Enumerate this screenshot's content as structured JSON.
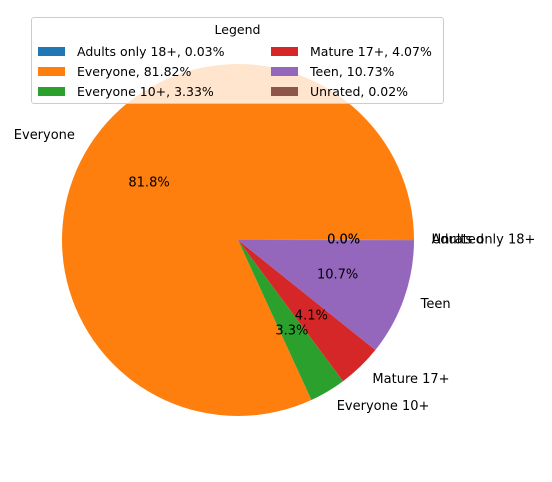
{
  "chart_data": {
    "type": "pie",
    "title": "",
    "categories": [
      "Adults only 18+",
      "Everyone",
      "Everyone 10+",
      "Mature 17+",
      "Teen",
      "Unrated"
    ],
    "values": [
      0.03,
      81.82,
      3.33,
      4.07,
      10.73,
      0.02
    ],
    "colors": [
      "#1f77b4",
      "#ff7f0e",
      "#2ca02c",
      "#d62728",
      "#9467bd",
      "#8c564b"
    ],
    "pct_labels": [
      "0.0%",
      "81.8%",
      "3.3%",
      "4.1%",
      "10.7%",
      "0.0%"
    ],
    "legend": {
      "title": "Legend",
      "position": "top",
      "entries": [
        "Adults only 18+, 0.03%",
        "Everyone, 81.82%",
        "Everyone 10+, 3.33%",
        "Mature 17+, 4.07%",
        "Teen, 10.73%",
        "Unrated, 0.02%"
      ]
    }
  }
}
